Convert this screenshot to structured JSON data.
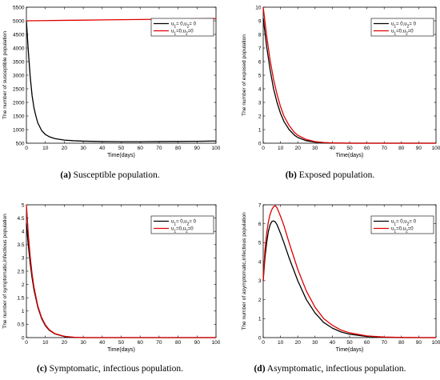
{
  "chart_data": [
    {
      "type": "line",
      "panel": "a",
      "ylabel": "The number of susceptible population",
      "xlabel": "Time(days)",
      "xlim": [
        0,
        100
      ],
      "ylim": [
        500,
        5500
      ],
      "xticks": [
        0,
        10,
        20,
        30,
        40,
        50,
        60,
        70,
        80,
        90,
        100
      ],
      "yticks": [
        500,
        1000,
        1500,
        2000,
        2500,
        3000,
        3500,
        4000,
        4500,
        5000,
        5500
      ],
      "legend_position": "top-right",
      "legend": [
        "u₁= 0,u₂= 0",
        "u₁=0,u₂=0"
      ],
      "series": [
        {
          "name": "u₁= 0,u₂= 0",
          "color": "#000000",
          "x": [
            0,
            1,
            2,
            3,
            4,
            5,
            6,
            8,
            10,
            12,
            15,
            20,
            25,
            30,
            40,
            50,
            60,
            70,
            80,
            90,
            100
          ],
          "y": [
            5000,
            3900,
            2950,
            2250,
            1800,
            1500,
            1250,
            970,
            820,
            740,
            670,
            615,
            590,
            575,
            560,
            555,
            555,
            560,
            565,
            570,
            580
          ]
        },
        {
          "name": "u₁=0,u₂=0",
          "color": "#e00000",
          "x": [
            0,
            10,
            20,
            30,
            40,
            50,
            60,
            70,
            80,
            90,
            100
          ],
          "y": [
            5000,
            5008,
            5016,
            5024,
            5032,
            5040,
            5048,
            5056,
            5064,
            5072,
            5080
          ]
        }
      ]
    },
    {
      "type": "line",
      "panel": "b",
      "ylabel": "The number of exposed population",
      "xlabel": "Time(days)",
      "xlim": [
        0,
        100
      ],
      "ylim": [
        0,
        10
      ],
      "xticks": [
        0,
        10,
        20,
        30,
        40,
        50,
        60,
        70,
        80,
        90,
        100
      ],
      "yticks": [
        0,
        1,
        2,
        3,
        4,
        5,
        6,
        7,
        8,
        9,
        10
      ],
      "legend_position": "top-right",
      "legend": [
        "u₁= 0,u₂= 0",
        "u₁=0,u₂=0"
      ],
      "series": [
        {
          "name": "u₁= 0,u₂= 0",
          "color": "#000000",
          "x": [
            0,
            2,
            4,
            6,
            8,
            10,
            12,
            15,
            18,
            20,
            25,
            30,
            35,
            40,
            50,
            60,
            80,
            100
          ],
          "y": [
            9.2,
            7.1,
            5.4,
            4.0,
            3.0,
            2.2,
            1.6,
            1.0,
            0.6,
            0.42,
            0.18,
            0.08,
            0.03,
            0.01,
            0.0,
            0.0,
            0.0,
            0.0
          ]
        },
        {
          "name": "u₁=0,u₂=0",
          "color": "#e00000",
          "x": [
            0,
            2,
            4,
            6,
            8,
            10,
            12,
            15,
            18,
            20,
            25,
            30,
            35,
            40,
            50,
            60,
            80,
            100
          ],
          "y": [
            10.0,
            7.9,
            6.1,
            4.7,
            3.6,
            2.7,
            2.0,
            1.3,
            0.8,
            0.58,
            0.27,
            0.12,
            0.05,
            0.02,
            0.0,
            0.0,
            0.0,
            0.0
          ]
        }
      ]
    },
    {
      "type": "line",
      "panel": "c",
      "ylabel": "The number of symptomatic,infectious population",
      "xlabel": "Time(days)",
      "xlim": [
        0,
        100
      ],
      "ylim": [
        0,
        5
      ],
      "xticks": [
        0,
        10,
        20,
        30,
        40,
        50,
        60,
        70,
        80,
        90,
        100
      ],
      "yticks": [
        0,
        0.5,
        1,
        1.5,
        2,
        2.5,
        3,
        3.5,
        4,
        4.5,
        5
      ],
      "legend_position": "top-right",
      "legend": [
        "u₁= 0,u₂= 0",
        "u₁=0,u₂=0"
      ],
      "series": [
        {
          "name": "u₁= 0,u₂= 0",
          "color": "#000000",
          "x": [
            0,
            1,
            2,
            3,
            4,
            6,
            8,
            10,
            12,
            15,
            20,
            25,
            30,
            40,
            50,
            100
          ],
          "y": [
            4.3,
            3.5,
            2.8,
            2.25,
            1.8,
            1.15,
            0.72,
            0.45,
            0.28,
            0.14,
            0.04,
            0.01,
            0.0,
            0.0,
            0.0,
            0.0
          ]
        },
        {
          "name": "u₁=0,u₂=0",
          "color": "#e00000",
          "x": [
            0,
            1,
            2,
            3,
            4,
            6,
            8,
            10,
            12,
            15,
            20,
            25,
            30,
            40,
            50,
            100
          ],
          "y": [
            5.0,
            3.9,
            3.05,
            2.4,
            1.9,
            1.2,
            0.76,
            0.48,
            0.3,
            0.15,
            0.05,
            0.015,
            0.0,
            0.0,
            0.0,
            0.0
          ]
        }
      ]
    },
    {
      "type": "line",
      "panel": "d",
      "ylabel": "The number of asymptomatic,infectious population",
      "xlabel": "Time(days)",
      "xlim": [
        0,
        100
      ],
      "ylim": [
        0,
        7
      ],
      "xticks": [
        0,
        10,
        20,
        30,
        40,
        50,
        60,
        70,
        80,
        90,
        100
      ],
      "yticks": [
        0,
        1,
        2,
        3,
        4,
        5,
        6,
        7
      ],
      "legend_position": "top-right",
      "legend": [
        "u₁= 0,u₂= 0",
        "u₁=0,u₂=0"
      ],
      "series": [
        {
          "name": "u₁= 0,u₂= 0",
          "color": "#000000",
          "x": [
            0,
            1,
            2,
            3,
            4,
            5,
            6,
            7,
            8,
            10,
            12,
            15,
            20,
            25,
            30,
            35,
            40,
            45,
            50,
            60,
            70,
            80,
            90,
            100
          ],
          "y": [
            3.0,
            4.2,
            5.0,
            5.6,
            5.95,
            6.12,
            6.15,
            6.1,
            5.95,
            5.5,
            5.0,
            4.2,
            3.0,
            2.0,
            1.3,
            0.8,
            0.5,
            0.3,
            0.18,
            0.06,
            0.02,
            0.0,
            0.0,
            0.0
          ]
        },
        {
          "name": "u₁=0,u₂=0",
          "color": "#e00000",
          "x": [
            0,
            1,
            2,
            3,
            4,
            5,
            6,
            7,
            8,
            10,
            12,
            15,
            20,
            25,
            30,
            35,
            40,
            45,
            50,
            60,
            70,
            80,
            90,
            100
          ],
          "y": [
            3.0,
            4.6,
            5.5,
            6.1,
            6.5,
            6.75,
            6.9,
            6.95,
            6.85,
            6.4,
            5.9,
            5.0,
            3.6,
            2.45,
            1.6,
            1.0,
            0.65,
            0.4,
            0.25,
            0.09,
            0.03,
            0.01,
            0.0,
            0.0
          ]
        }
      ]
    }
  ],
  "captions": [
    {
      "label": "(a)",
      "text": " Susceptible population."
    },
    {
      "label": "(b)",
      "text": " Exposed population."
    },
    {
      "label": "(c)",
      "text": " Symptomatic, infectious population."
    },
    {
      "label": "(d)",
      "text": " Asymptomatic, infectious population."
    }
  ]
}
